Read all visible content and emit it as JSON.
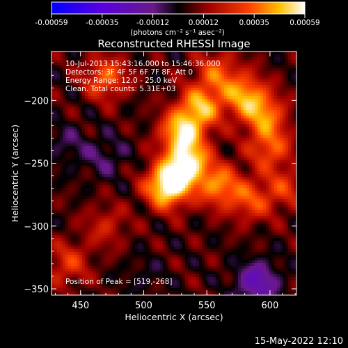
{
  "chart_data": {
    "type": "heatmap",
    "title": "Reconstructed RHESSI Image",
    "xlabel": "Heliocentric X (arcsec)",
    "ylabel": "Heliocentric Y (arcsec)",
    "xlim": [
      427,
      621
    ],
    "ylim": [
      -355,
      -161
    ],
    "x_ticks": [
      450,
      500,
      550,
      600
    ],
    "y_ticks": [
      -200,
      -250,
      -300,
      -350
    ],
    "colorbar": {
      "min": -0.00059,
      "max": 0.00059,
      "ticks": [
        "-0.00059",
        "-0.00035",
        "-0.00012",
        "0.00012",
        "0.00035",
        "0.00059"
      ],
      "label": "(photons cm⁻² s⁻¹ asec⁻²)"
    },
    "annotations": [
      "10-Jul-2013 15:43:16.000 to 15:46:36.000",
      "Detectors: 3F 4F 5F 6F 7F 8F, Att 0",
      "Energy Range: 12.0 - 25.0 keV",
      "Clean.  Total counts: 5.31E+03"
    ],
    "peak_label": "Position of Peak = [519,-268]",
    "peak": [
      519,
      -268
    ],
    "sources": [
      {
        "x": 519,
        "y": -268,
        "value": 0.00059
      },
      {
        "x": 535,
        "y": -250,
        "value": 0.00048
      },
      {
        "x": 530,
        "y": -225,
        "value": 0.00044
      },
      {
        "x": 545,
        "y": -205,
        "value": 0.00038
      },
      {
        "x": 580,
        "y": -196,
        "value": 0.00036
      },
      {
        "x": 560,
        "y": -268,
        "value": 0.00034
      },
      {
        "x": 596,
        "y": -212,
        "value": 0.00032
      },
      {
        "x": 600,
        "y": -238,
        "value": 0.00028
      },
      {
        "x": 470,
        "y": -182,
        "value": 0.0003
      },
      {
        "x": 558,
        "y": -178,
        "value": 0.00026
      },
      {
        "x": 585,
        "y": -280,
        "value": 0.00024
      },
      {
        "x": 440,
        "y": -330,
        "value": 0.00022
      },
      {
        "x": 470,
        "y": -300,
        "value": 0.00016
      },
      {
        "x": 612,
        "y": -270,
        "value": 0.0002
      },
      {
        "x": 470,
        "y": -245,
        "value": -0.00012
      },
      {
        "x": 590,
        "y": -345,
        "value": -0.00028
      },
      {
        "x": 500,
        "y": -340,
        "value": -6e-05
      },
      {
        "x": 440,
        "y": -235,
        "value": -0.0001
      }
    ]
  },
  "footer": {
    "date": "15-May-2022 12:10"
  }
}
